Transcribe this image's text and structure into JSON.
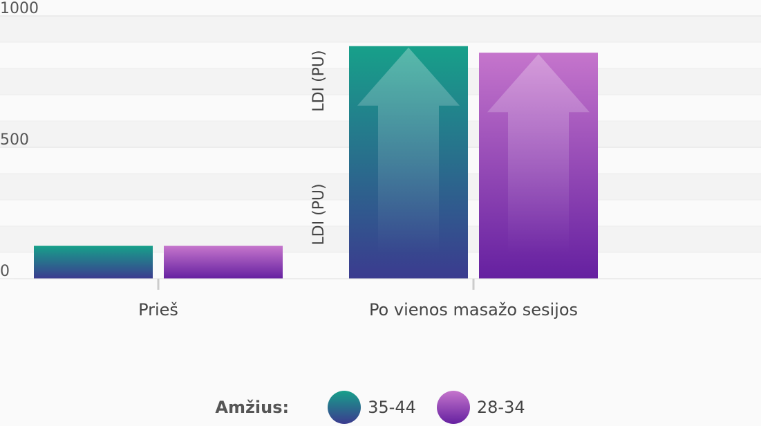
{
  "chart_data": {
    "type": "bar",
    "categories": [
      "Prieš",
      "Po vienos masažo sesijos"
    ],
    "series": [
      {
        "name": "35-44",
        "values": [
          125,
          885
        ],
        "color_top": "#17a08a",
        "color_bottom": "#3b3b8f"
      },
      {
        "name": "28-34",
        "values": [
          125,
          860
        ],
        "color_top": "#c575cc",
        "color_bottom": "#6520a0"
      }
    ],
    "ylim": [
      0,
      1000
    ],
    "yticks": [
      0,
      500,
      1000
    ],
    "ylabel": "LDI (PU)",
    "ylabel_repeats": 2,
    "legend_title": "Amžius:",
    "legend_position": "bottom-center",
    "grid": true,
    "arrow_decoration_on_category": 1
  }
}
